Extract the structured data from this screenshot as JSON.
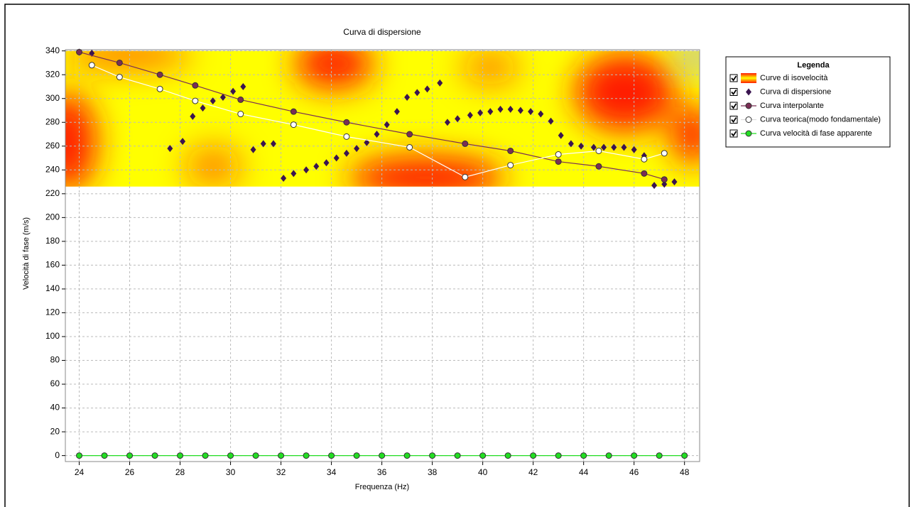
{
  "chart_data": {
    "type": "scatter",
    "title": "Curva di dispersione",
    "x_label": "Frequenza (Hz)",
    "y_label": "Velocità di fase (m/s)",
    "legend_title": "Legenda",
    "legend_position": "right",
    "grid": true,
    "xlim": [
      23.45,
      48.6
    ],
    "ylim": [
      -5,
      341
    ],
    "xticks": [
      24,
      26,
      28,
      30,
      32,
      34,
      36,
      38,
      40,
      42,
      44,
      46,
      48
    ],
    "yticks": [
      0,
      20,
      40,
      60,
      80,
      100,
      120,
      140,
      160,
      180,
      200,
      220,
      240,
      260,
      280,
      300,
      320,
      340
    ],
    "heatmap": {
      "name": "Curve di isovelocità",
      "range": [
        226,
        340
      ],
      "colors": [
        "#ff1a00",
        "#ffff00"
      ]
    },
    "series": [
      {
        "name": "Curva di dispersione",
        "color": "#3a1450",
        "marker": "diamond",
        "line": false,
        "x": [
          24,
          24.5,
          27.6,
          28.1,
          28.5,
          28.9,
          29.3,
          29.7,
          30.1,
          30.5,
          30.9,
          31.3,
          31.7,
          32.1,
          32.5,
          33.0,
          33.4,
          33.8,
          34.2,
          34.6,
          35.0,
          35.4,
          35.8,
          36.2,
          36.6,
          37.0,
          37.4,
          37.8,
          38.3,
          38.6,
          39.0,
          39.5,
          39.9,
          40.3,
          40.7,
          41.1,
          41.5,
          41.9,
          42.3,
          42.7,
          43.1,
          43.5,
          43.9,
          44.4,
          44.8,
          45.2,
          45.6,
          46.0,
          46.4,
          46.8,
          47.2,
          47.6
        ],
        "values": [
          339,
          338,
          258,
          264,
          285,
          292,
          298,
          301,
          306,
          310,
          257,
          262,
          262,
          233,
          237,
          240,
          243,
          246,
          250,
          254,
          258,
          263,
          270,
          278,
          289,
          301,
          305,
          308,
          313,
          280,
          283,
          286,
          288,
          289,
          291,
          291,
          290,
          289,
          287,
          281,
          269,
          262,
          260,
          259,
          259,
          259,
          259,
          257,
          252,
          227,
          228,
          230
        ]
      },
      {
        "name": "Curva interpolante",
        "color": "#7a2e55",
        "marker": "circle",
        "line": true,
        "x": [
          24,
          25.6,
          27.2,
          28.6,
          30.4,
          32.5,
          34.6,
          37.1,
          39.3,
          41.1,
          43.0,
          44.6,
          46.4,
          47.2
        ],
        "values": [
          339,
          330,
          320,
          311,
          299,
          289,
          280,
          270,
          262,
          256,
          247,
          243,
          237,
          232
        ]
      },
      {
        "name": "Curva teorica(modo fondamentale)",
        "color": "#ffffff",
        "marker": "circle",
        "line": true,
        "x": [
          24.5,
          25.6,
          27.2,
          28.6,
          30.4,
          32.5,
          34.6,
          37.1,
          39.3,
          41.1,
          43.0,
          44.6,
          46.4,
          47.2
        ],
        "values": [
          328,
          318,
          308,
          298,
          287,
          278,
          268,
          259,
          234,
          244,
          253,
          256,
          249,
          254
        ]
      },
      {
        "name": "Curva velocità di fase apparente",
        "color": "#22dd22",
        "marker": "circle",
        "line": true,
        "x": [
          24,
          25,
          26,
          27,
          28,
          29,
          30,
          31,
          32,
          33,
          34,
          35,
          36,
          37,
          38,
          39,
          40,
          41,
          42,
          43,
          44,
          45,
          46,
          47,
          48
        ],
        "values": [
          0,
          0,
          0,
          0,
          0,
          0,
          0,
          0,
          0,
          0,
          0,
          0,
          0,
          0,
          0,
          0,
          0,
          0,
          0,
          0,
          0,
          0,
          0,
          0,
          0
        ]
      }
    ]
  }
}
